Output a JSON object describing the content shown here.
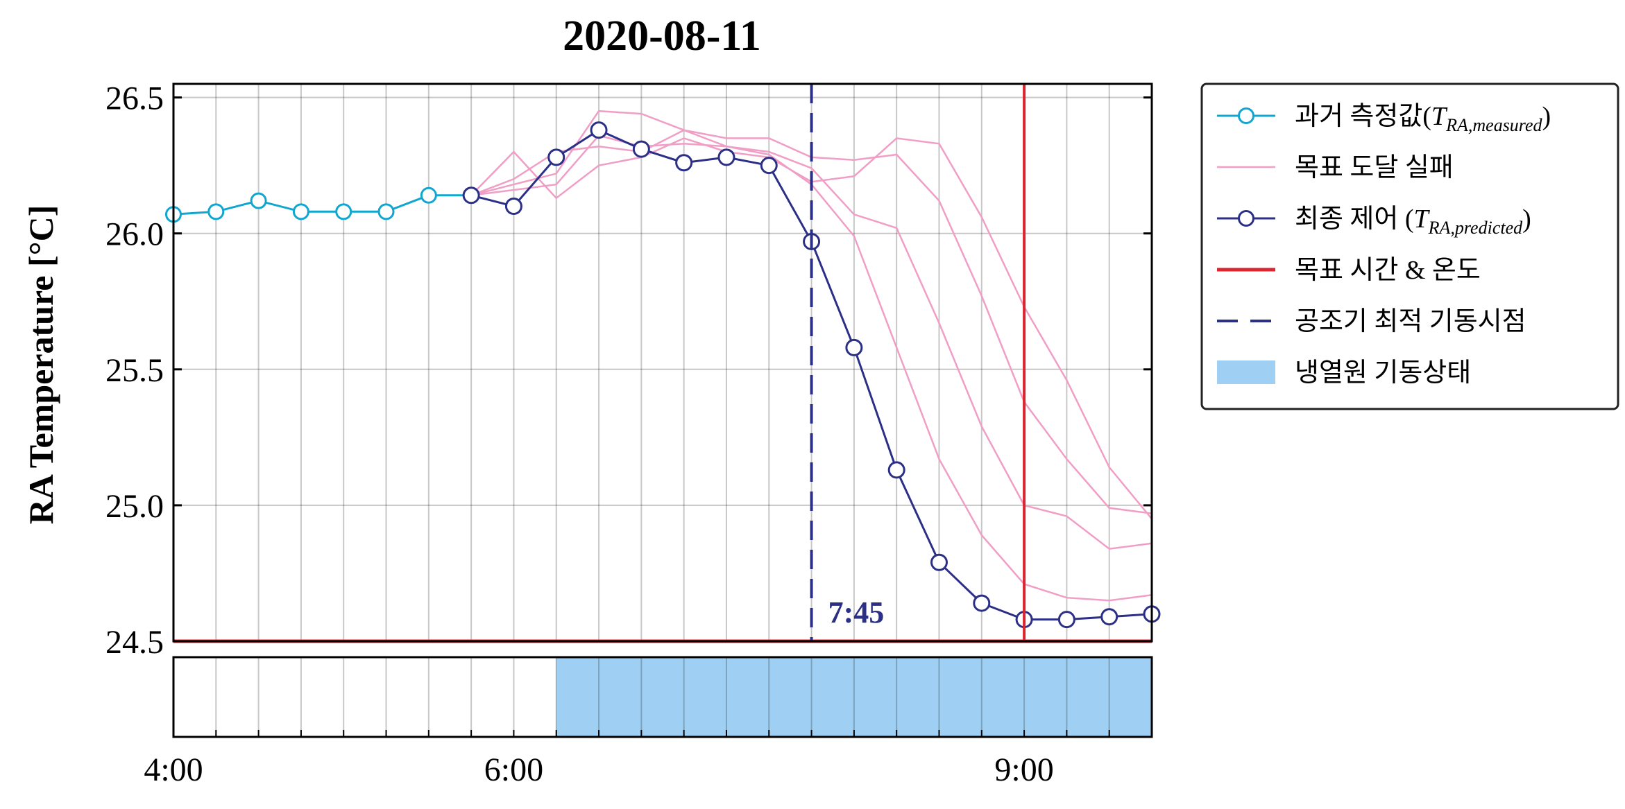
{
  "chart_data": {
    "type": "line",
    "title": "2020-08-11",
    "ylabel": "RA Temperature [°C]",
    "xlabel": "",
    "x_range": [
      "4:00",
      "9:45"
    ],
    "ylim": [
      24.5,
      26.55
    ],
    "yticks": [
      24.5,
      25.0,
      25.5,
      26.0,
      26.5
    ],
    "ytick_labels": [
      "24.5",
      "25.0",
      "25.5",
      "26.0",
      "26.5"
    ],
    "xticks": [
      "4:00",
      "6:00",
      "9:00"
    ],
    "grid": true,
    "legend_position": "outside-right",
    "colors": {
      "measured": "#11a6cf",
      "failed": "#f09ec6",
      "final": "#2b2f86",
      "target": "#d9262f",
      "chiller": "#9fd0f3"
    },
    "series": [
      {
        "name": "과거 측정값(T_RA,measured)",
        "x": [
          "4:00",
          "4:15",
          "4:30",
          "4:45",
          "5:00",
          "5:15",
          "5:30",
          "5:45"
        ],
        "values": [
          26.07,
          26.08,
          26.12,
          26.08,
          26.08,
          26.08,
          26.14,
          26.14
        ]
      },
      {
        "name": "최종 제어 (T_RA,predicted)",
        "x": [
          "5:45",
          "6:00",
          "6:15",
          "6:30",
          "6:45",
          "7:00",
          "7:15",
          "7:30",
          "7:45",
          "8:00",
          "8:15",
          "8:30",
          "8:45",
          "9:00",
          "9:15",
          "9:30",
          "9:45"
        ],
        "values": [
          26.14,
          26.1,
          26.28,
          26.38,
          26.31,
          26.26,
          26.28,
          26.25,
          25.97,
          25.58,
          25.13,
          24.79,
          24.64,
          24.58,
          24.58,
          24.59,
          24.6
        ]
      },
      {
        "name": "목표 도달 실패",
        "x": [
          "5:45",
          "6:00",
          "6:15",
          "6:30",
          "6:45",
          "7:00",
          "7:15",
          "7:30",
          "7:45",
          "8:00",
          "8:15",
          "8:30",
          "8:45",
          "9:00",
          "9:15",
          "9:30",
          "9:45"
        ],
        "values": [
          26.14,
          26.3,
          26.13,
          26.25,
          26.28,
          26.35,
          26.3,
          26.28,
          26.19,
          26.21,
          26.35,
          26.33,
          26.06,
          25.73,
          25.46,
          25.14,
          24.95
        ]
      },
      {
        "name": "",
        "x": [
          "5:45",
          "6:00",
          "6:15",
          "6:30",
          "6:45",
          "7:00",
          "7:15",
          "7:30",
          "7:45",
          "8:00",
          "8:15",
          "8:30",
          "8:45",
          "9:00",
          "9:15",
          "9:30",
          "9:45"
        ],
        "values": [
          26.14,
          26.18,
          26.22,
          26.45,
          26.44,
          26.38,
          26.35,
          26.35,
          26.28,
          26.27,
          26.29,
          26.12,
          25.77,
          25.38,
          25.17,
          24.99,
          24.97
        ]
      },
      {
        "name": "",
        "x": [
          "5:45",
          "6:00",
          "6:15",
          "6:30",
          "6:45",
          "7:00",
          "7:15",
          "7:30",
          "7:45",
          "8:00",
          "8:15",
          "8:30",
          "8:45",
          "9:00",
          "9:15",
          "9:30",
          "9:45"
        ],
        "values": [
          26.14,
          26.2,
          26.3,
          26.32,
          26.3,
          26.38,
          26.32,
          26.3,
          26.24,
          26.07,
          26.02,
          25.67,
          25.29,
          25.0,
          24.96,
          24.84,
          24.86
        ]
      },
      {
        "name": "",
        "x": [
          "5:45",
          "6:00",
          "6:15",
          "6:30",
          "6:45",
          "7:00",
          "7:15",
          "7:30",
          "7:45",
          "8:00",
          "8:15",
          "8:30",
          "8:45",
          "9:00",
          "9:15",
          "9:30",
          "9:45"
        ],
        "values": [
          26.14,
          26.16,
          26.18,
          26.36,
          26.32,
          26.33,
          26.32,
          26.29,
          26.18,
          25.99,
          25.58,
          25.17,
          24.89,
          24.71,
          24.66,
          24.65,
          24.67
        ]
      }
    ],
    "target_time": "9:00",
    "target_temperature": 24.5,
    "optimal_start": "7:45",
    "optimal_start_label": "7:45",
    "chiller_on_start": "6:15",
    "chiller_on_end": "9:45",
    "legend": [
      {
        "key": "measured",
        "prefix": "과거 측정값(",
        "sym": "T",
        "sub": "RA,measured",
        "suffix": ")"
      },
      {
        "key": "failed",
        "prefix": "목표 도달 실패",
        "sym": "",
        "sub": "",
        "suffix": ""
      },
      {
        "key": "final",
        "prefix": "최종 제어 (",
        "sym": "T",
        "sub": "RA,predicted",
        "suffix": ")"
      },
      {
        "key": "target",
        "prefix": "목표 시간 & 온도",
        "sym": "",
        "sub": "",
        "suffix": ""
      },
      {
        "key": "optimal",
        "prefix": "공조기 최적 기동시점",
        "sym": "",
        "sub": "",
        "suffix": ""
      },
      {
        "key": "chiller",
        "prefix": "냉열원 기동상태",
        "sym": "",
        "sub": "",
        "suffix": ""
      }
    ]
  }
}
